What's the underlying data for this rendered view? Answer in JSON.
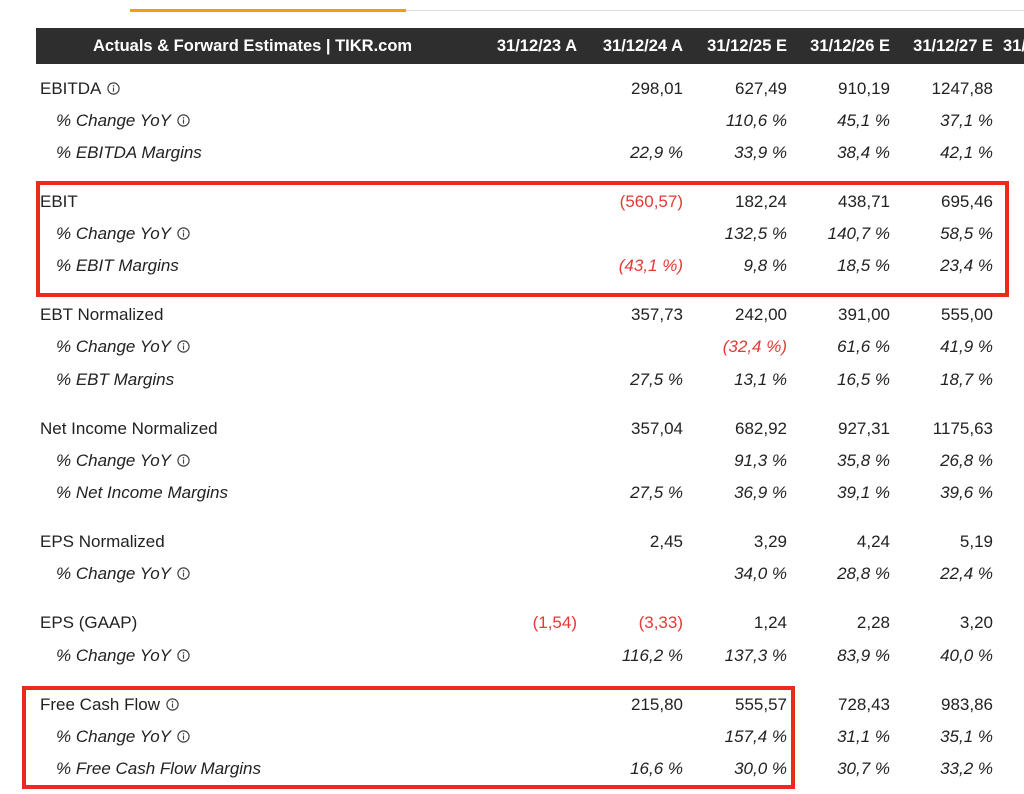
{
  "table": {
    "title": "Actuals & Forward Estimates | TIKR.com",
    "columns": [
      "31/12/23 A",
      "31/12/24 A",
      "31/12/25 E",
      "31/12/26 E",
      "31/12/27 E",
      "31/"
    ],
    "rows": [
      {
        "label": "EBITDA",
        "info": true,
        "values": [
          null,
          "298,01",
          "627,49",
          "910,19",
          "1247,88"
        ]
      },
      {
        "label": "% Change YoY",
        "info": true,
        "values": [
          null,
          null,
          "110,6 %",
          "45,1 %",
          "37,1 %"
        ]
      },
      {
        "label": "% EBITDA Margins",
        "values": [
          null,
          "22,9 %",
          "33,9 %",
          "38,4 %",
          "42,1 %"
        ]
      },
      {
        "label": "EBIT",
        "values": [
          null,
          "(560,57)",
          "182,24",
          "438,71",
          "695,46"
        ]
      },
      {
        "label": "% Change YoY",
        "info": true,
        "values": [
          null,
          null,
          "132,5 %",
          "140,7 %",
          "58,5 %"
        ]
      },
      {
        "label": "% EBIT Margins",
        "values": [
          null,
          "(43,1 %)",
          "9,8 %",
          "18,5 %",
          "23,4 %"
        ]
      },
      {
        "label": "EBT Normalized",
        "values": [
          null,
          "357,73",
          "242,00",
          "391,00",
          "555,00"
        ]
      },
      {
        "label": "% Change YoY",
        "info": true,
        "values": [
          null,
          null,
          "(32,4 %)",
          "61,6 %",
          "41,9 %"
        ]
      },
      {
        "label": "% EBT Margins",
        "values": [
          null,
          "27,5 %",
          "13,1 %",
          "16,5 %",
          "18,7 %"
        ]
      },
      {
        "label": "Net Income Normalized",
        "values": [
          null,
          "357,04",
          "682,92",
          "927,31",
          "1175,63"
        ]
      },
      {
        "label": "% Change YoY",
        "info": true,
        "values": [
          null,
          null,
          "91,3 %",
          "35,8 %",
          "26,8 %"
        ]
      },
      {
        "label": "% Net Income Margins",
        "values": [
          null,
          "27,5 %",
          "36,9 %",
          "39,1 %",
          "39,6 %"
        ]
      },
      {
        "label": "EPS Normalized",
        "values": [
          null,
          "2,45",
          "3,29",
          "4,24",
          "5,19"
        ]
      },
      {
        "label": "% Change YoY",
        "info": true,
        "values": [
          null,
          null,
          "34,0 %",
          "28,8 %",
          "22,4 %"
        ]
      },
      {
        "label": "EPS (GAAP)",
        "values": [
          "(1,54)",
          "(3,33)",
          "1,24",
          "2,28",
          "3,20"
        ]
      },
      {
        "label": "% Change YoY",
        "info": true,
        "values": [
          null,
          "116,2 %",
          "137,3 %",
          "83,9 %",
          "40,0 %"
        ]
      },
      {
        "label": "Free Cash Flow",
        "info": true,
        "values": [
          null,
          "215,80",
          "555,57",
          "728,43",
          "983,86"
        ]
      },
      {
        "label": "% Change YoY",
        "info": true,
        "values": [
          null,
          null,
          "157,4 %",
          "31,1 %",
          "35,1 %"
        ]
      },
      {
        "label": "% Free Cash Flow Margins",
        "values": [
          null,
          "16,6 %",
          "30,0 %",
          "30,7 %",
          "33,2 %"
        ]
      }
    ]
  }
}
